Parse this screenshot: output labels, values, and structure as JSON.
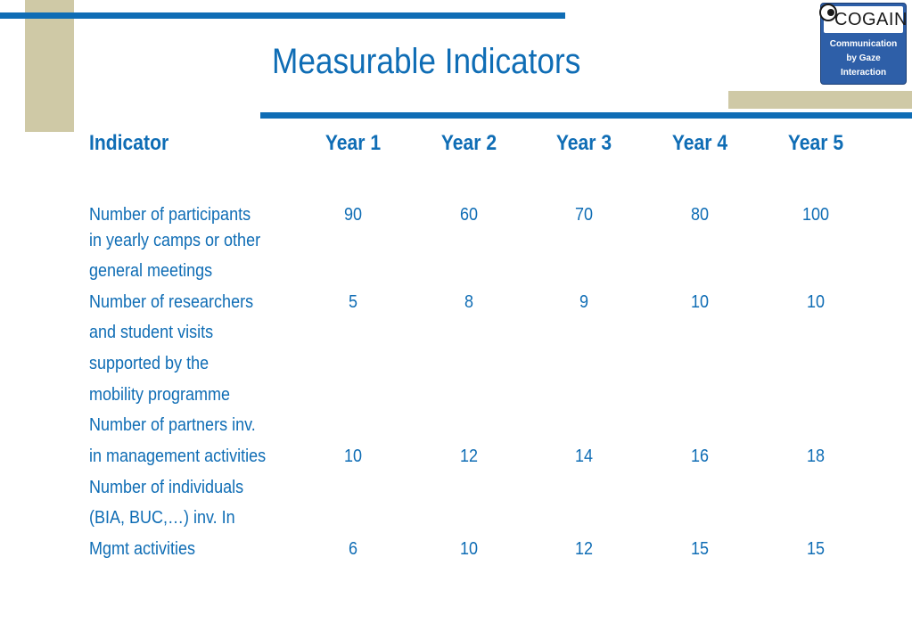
{
  "title": "Measurable Indicators",
  "logo": {
    "name": "COGAIN",
    "subtitle_lines": [
      "Communication",
      "by Gaze",
      "Interaction"
    ]
  },
  "table": {
    "headers": [
      "Indicator",
      "Year 1",
      "Year 2",
      "Year 3",
      "Year 4",
      "Year 5"
    ],
    "rows": [
      {
        "lines": [
          "Number of participants",
          "in yearly camps or other",
          "general meetings"
        ],
        "values": [
          "90",
          "60",
          "70",
          "80",
          "100"
        ]
      },
      {
        "lines": [
          "Number of researchers",
          "and student visits",
          "supported by the",
          "mobility programme"
        ],
        "values": [
          "5",
          "8",
          "9",
          "10",
          "10"
        ]
      },
      {
        "lines": [
          "Number of partners inv.",
          "in management activities"
        ],
        "values": [
          "10",
          "12",
          "14",
          "16",
          "18"
        ]
      },
      {
        "lines": [
          "Number of individuals",
          "(BIA, BUC,…) inv. In",
          "Mgmt activities"
        ],
        "values": [
          "6",
          "10",
          "12",
          "15",
          "15"
        ]
      }
    ]
  },
  "colors": {
    "blue": "#0f6db5",
    "tan": "#cfc9a6",
    "logo_blue": "#2e5fa8"
  }
}
